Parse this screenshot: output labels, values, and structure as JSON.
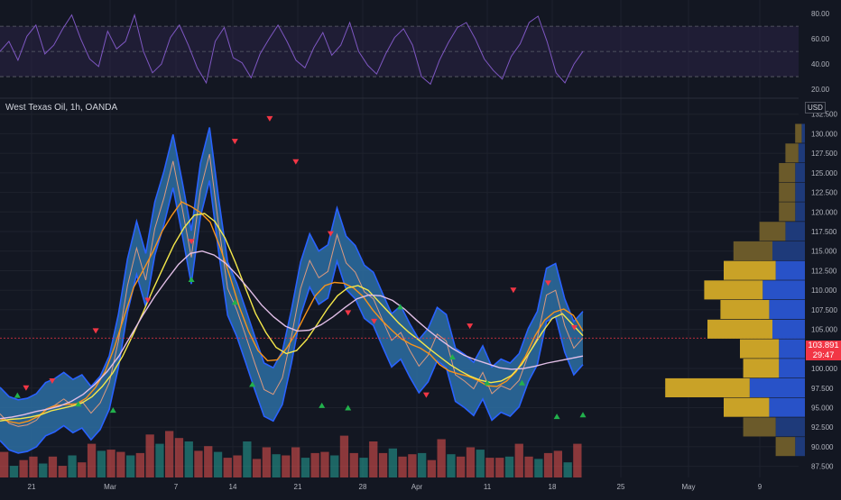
{
  "header": {
    "symbol_title": "West Texas Oil, 1h, OANDA",
    "currency": "USD"
  },
  "price_badge": {
    "price": "103.891",
    "countdown": "29:47",
    "color": "#f23645"
  },
  "colors": {
    "background": "#131722",
    "grid": "#1e222d",
    "rsi_line": "#7e57c2",
    "rsi_band": "#2a2346",
    "band_fill": "#2d6ea3",
    "band_edge": "#2962ff",
    "price_line": "#f0a07c",
    "ma_fast": "#f7931a",
    "ma_mid": "#f5e84a",
    "ma_slow": "#e1bee7",
    "up": "#26a69a",
    "down": "#ef5350",
    "vp_gold": "#c9a227",
    "vp_blue": "#2852c8",
    "vp_gold_dim": "#6b5a2a",
    "vp_blue_dim": "#1e3a7a"
  },
  "chart_data": [
    {
      "type": "line",
      "name": "rsi_panel",
      "y_ticks": [
        "80.00",
        "60.00",
        "40.00",
        "20.00"
      ],
      "ylim": [
        15,
        88
      ],
      "band_levels": [
        30,
        70
      ],
      "mid_levels": [
        50
      ],
      "series": [
        {
          "values": [
            50,
            58,
            43,
            62,
            71,
            48,
            55,
            68,
            79,
            60,
            44,
            38,
            66,
            52,
            58,
            79,
            50,
            33,
            40,
            61,
            71,
            55,
            37,
            25,
            58,
            69,
            45,
            41,
            29,
            48,
            60,
            71,
            58,
            43,
            37,
            53,
            65,
            47,
            55,
            73,
            50,
            39,
            32,
            48,
            61,
            68,
            55,
            30,
            24,
            43,
            57,
            69,
            73,
            60,
            44,
            35,
            28,
            46,
            56,
            73,
            78,
            58,
            33,
            25,
            40,
            50
          ]
        }
      ]
    },
    {
      "type": "line",
      "name": "price_panel",
      "x_ticks": [
        "21",
        "Mar",
        "7",
        "14",
        "21",
        "28",
        "Apr",
        "11",
        "18",
        "25",
        "May",
        "9"
      ],
      "y_ticks": [
        "132.500",
        "130.000",
        "127.500",
        "125.000",
        "122.500",
        "120.000",
        "117.500",
        "115.000",
        "112.500",
        "110.000",
        "107.500",
        "105.000",
        "100.000",
        "97.500",
        "95.000",
        "92.500",
        "90.000",
        "87.500"
      ],
      "ylim": [
        87,
        133.5
      ],
      "last_price": 103.891,
      "series": [
        {
          "values": [
            94.2,
            93.0,
            92.6,
            92.8,
            93.4,
            94.8,
            95.3,
            96.1,
            95.2,
            95.8,
            94.3,
            95.6,
            98.2,
            103.5,
            110.6,
            115.4,
            111.3,
            117.9,
            121.8,
            126.5,
            120.5,
            114.2,
            122.8,
            127.4,
            118.3,
            110.2,
            107.5,
            104.1,
            100.6,
            97.3,
            96.7,
            98.8,
            104.1,
            110.2,
            113.8,
            111.6,
            112.4,
            117.1,
            113.5,
            112.3,
            109.8,
            108.9,
            106.2,
            103.6,
            104.6,
            102.3,
            100.3,
            101.7,
            104.4,
            103.5,
            99.2,
            98.4,
            97.4,
            99.5,
            96.8,
            97.8,
            97.3,
            98.5,
            101.7,
            103.9,
            109.4,
            110.0,
            105.5,
            102.6,
            103.9
          ]
        },
        {
          "values": [
            93.6,
            93.2,
            93.0,
            93.3,
            93.9,
            94.9,
            95.3,
            95.4,
            95.5,
            96.2,
            97.6,
            99.6,
            102.8,
            106.7,
            110.4,
            112.6,
            114.9,
            117.6,
            119.6,
            121.3,
            120.7,
            119.9,
            118.7,
            115.6,
            112.0,
            108.0,
            104.8,
            102.3,
            101.0,
            101.1,
            102.6,
            104.6,
            107.0,
            109.3,
            110.6,
            111.0,
            110.9,
            110.3,
            109.2,
            107.5,
            106.1,
            104.9,
            103.8,
            103.1,
            102.6,
            101.8,
            100.5,
            99.7,
            99.3,
            99.0,
            98.5,
            97.8,
            97.7,
            98.4,
            99.6,
            101.6,
            104.2,
            106.2,
            107.2,
            107.6,
            106.8,
            104.8
          ]
        },
        {
          "values": [
            93.3,
            93.5,
            93.6,
            93.8,
            94.1,
            94.6,
            94.9,
            95.2,
            95.6,
            96.4,
            97.7,
            99.4,
            101.6,
            104.3,
            107.2,
            110.2,
            113.0,
            115.8,
            118.0,
            119.6,
            119.8,
            118.8,
            116.7,
            113.6,
            110.3,
            107.0,
            104.6,
            102.7,
            101.9,
            102.3,
            103.7,
            105.6,
            107.6,
            109.3,
            110.3,
            110.6,
            110.0,
            108.6,
            107.2,
            105.8,
            104.6,
            103.6,
            102.5,
            101.5,
            100.5,
            99.7,
            99.0,
            98.5,
            98.2,
            98.4,
            99.1,
            100.5,
            102.5,
            104.6,
            106.4,
            107.0,
            105.6,
            104.2
          ]
        },
        {
          "values": [
            93.6,
            93.8,
            94.1,
            94.5,
            94.8,
            95.2,
            95.8,
            96.7,
            98.0,
            99.6,
            101.6,
            104.2,
            106.8,
            109.2,
            111.3,
            113.3,
            114.7,
            115.0,
            114.5,
            113.4,
            111.8,
            110.0,
            108.1,
            106.6,
            105.4,
            104.8,
            104.9,
            105.6,
            106.6,
            107.8,
            108.9,
            109.4,
            109.3,
            108.7,
            107.6,
            106.2,
            104.9,
            103.7,
            102.6,
            101.7,
            101.1,
            100.6,
            100.1,
            99.9,
            100.0,
            100.3,
            100.7,
            101.0,
            101.3,
            101.6
          ]
        }
      ],
      "up_signals": [
        96.6,
        95.5,
        94.7,
        111.4,
        108.5,
        98.0,
        95.3,
        95.0,
        107.9,
        101.5,
        98.2,
        98.2,
        93.9,
        94.1
      ],
      "down_signals": [
        97.5,
        98.4,
        104.8,
        108.7,
        116.2,
        129.0,
        131.9,
        126.4,
        117.2,
        107.1,
        106.0,
        96.6,
        105.4,
        110.0,
        110.9,
        105.2
      ]
    },
    {
      "type": "bar",
      "name": "volume_profile",
      "levels": [
        90.0,
        92.5,
        95.0,
        97.5,
        100.0,
        102.5,
        105.0,
        107.5,
        110.0,
        112.5,
        115.0,
        117.5,
        120.0,
        122.5,
        125.0,
        127.5,
        130.0
      ],
      "buy_volume": [
        6,
        10,
        14,
        26,
        11,
        12,
        20,
        15,
        18,
        16,
        12,
        8,
        5,
        5,
        5,
        4,
        2
      ],
      "sell_volume": [
        3,
        9,
        11,
        17,
        8,
        8,
        10,
        11,
        13,
        9,
        10,
        6,
        3,
        3,
        3,
        2,
        1
      ]
    },
    {
      "type": "bar",
      "name": "volume",
      "values": [
        22,
        10,
        15,
        18,
        12,
        18,
        10,
        19,
        13,
        29,
        23,
        24,
        22,
        19,
        21,
        37,
        29,
        40,
        34,
        31,
        23,
        27,
        22,
        17,
        19,
        31,
        16,
        26,
        20,
        19,
        26,
        17,
        21,
        22,
        19,
        36,
        21,
        17,
        31,
        21,
        25,
        18,
        20,
        21,
        15,
        33,
        20,
        18,
        26,
        24,
        17,
        17,
        18,
        29,
        18,
        16,
        21,
        23,
        13,
        29
      ]
    }
  ]
}
